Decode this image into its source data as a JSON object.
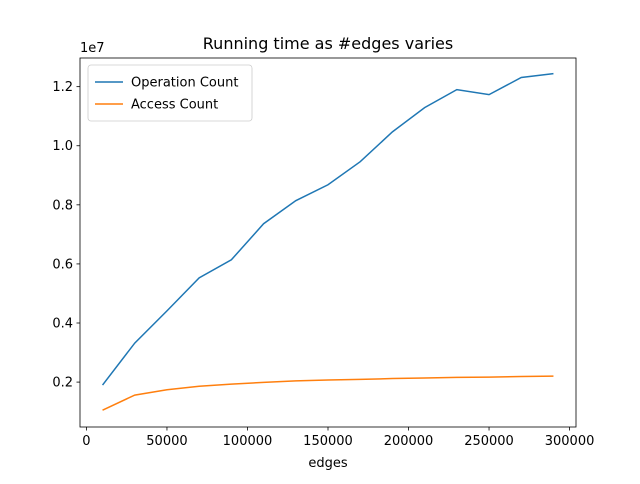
{
  "chart_data": {
    "type": "line",
    "title": "Running time as #edges varies",
    "x_label": "edges",
    "offset_label": "1e7",
    "x": [
      10000,
      30000,
      50000,
      70000,
      90000,
      110000,
      130000,
      150000,
      170000,
      190000,
      210000,
      230000,
      250000,
      270000,
      290000
    ],
    "series": [
      {
        "name": "Operation Count",
        "color": "#1f77b4",
        "values": [
          0.19,
          0.332,
          0.441,
          0.553,
          0.614,
          0.736,
          0.814,
          0.868,
          0.946,
          1.047,
          1.129,
          1.19,
          1.173,
          1.231,
          1.244
        ]
      },
      {
        "name": "Access Count",
        "color": "#ff7f0e",
        "values": [
          0.105,
          0.156,
          0.174,
          0.186,
          0.193,
          0.199,
          0.204,
          0.207,
          0.209,
          0.212,
          0.214,
          0.216,
          0.217,
          0.219,
          0.22
        ]
      }
    ],
    "xlim": [
      -4000,
      304000
    ],
    "xticks": [
      0,
      50000,
      100000,
      150000,
      200000,
      250000,
      300000
    ],
    "ylim": [
      0.048,
      1.297
    ],
    "yticks": [
      0.2,
      0.4,
      0.6,
      0.8,
      {
        "value": 1,
        "label": "1.0"
      },
      1.2
    ],
    "legend": "upper left"
  }
}
